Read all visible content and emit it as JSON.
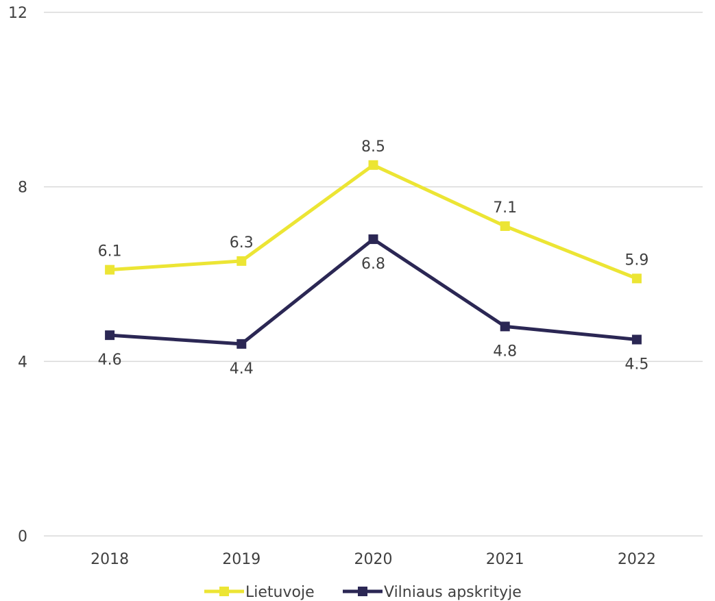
{
  "chart_data": {
    "type": "line",
    "categories": [
      "2018",
      "2019",
      "2020",
      "2021",
      "2022"
    ],
    "ylim": [
      0,
      12
    ],
    "yticks": [
      "0",
      "4",
      "8",
      "12"
    ],
    "grid": true,
    "legend_position": "bottom",
    "series": [
      {
        "name": "Lietuvoje",
        "color": "#ece534",
        "marker": "square",
        "values": [
          6.1,
          6.3,
          8.5,
          7.1,
          5.9
        ],
        "labels": [
          "6.1",
          "6.3",
          "8.5",
          "7.1",
          "5.9"
        ],
        "label_position": "above"
      },
      {
        "name": "Vilniaus apskrityje",
        "color": "#2b2754",
        "marker": "square",
        "values": [
          4.6,
          4.4,
          6.8,
          4.8,
          4.5
        ],
        "labels": [
          "4.6",
          "4.4",
          "6.8",
          "4.8",
          "4.5"
        ],
        "label_position": "below"
      }
    ]
  }
}
